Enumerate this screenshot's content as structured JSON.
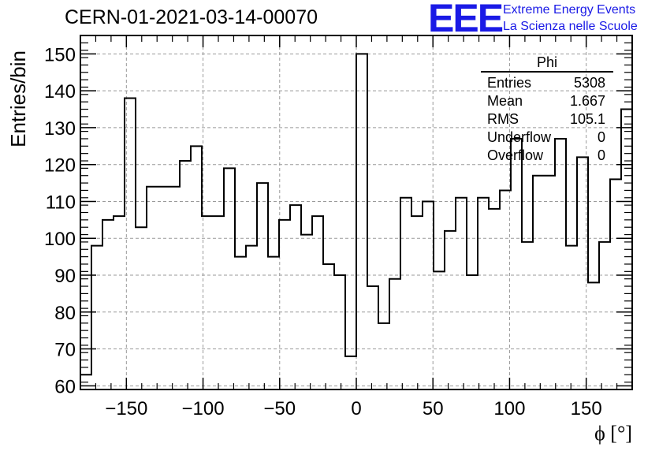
{
  "header": {
    "run_title": "CERN-01-2021-03-14-00070",
    "logo_text": "EEE",
    "org_line1": "Extreme Energy Events",
    "org_line2": "La Scienza nelle Scuole"
  },
  "stats": {
    "name": "Phi",
    "rows": [
      {
        "label": "Entries",
        "value": "5308"
      },
      {
        "label": "Mean",
        "value": "1.667"
      },
      {
        "label": "RMS",
        "value": "105.1"
      },
      {
        "label": "Underflow",
        "value": "0"
      },
      {
        "label": "Overflow",
        "value": "0"
      }
    ]
  },
  "colors": {
    "line": "#000000",
    "grid": "#999999",
    "logo": "#1a1ae6"
  },
  "chart_data": {
    "type": "histogram",
    "xlabel": "ϕ [°]",
    "ylabel": "Entries/bin",
    "xlim": [
      -180,
      180
    ],
    "ylim": [
      59,
      155
    ],
    "grid": true,
    "legend_position": "top-right",
    "x_ticks": [
      -150,
      -100,
      -50,
      0,
      50,
      100,
      150
    ],
    "y_ticks": [
      60,
      70,
      80,
      90,
      100,
      110,
      120,
      130,
      140,
      150
    ],
    "bin_edges_start": -180,
    "bin_width": 7.2,
    "values": [
      63,
      98,
      105,
      106,
      138,
      103,
      114,
      114,
      114,
      121,
      125,
      106,
      106,
      119,
      95,
      98,
      115,
      95,
      105,
      109,
      101,
      106,
      93,
      90,
      68,
      150,
      87,
      77,
      89,
      111,
      106,
      110,
      91,
      102,
      111,
      90,
      111,
      108,
      113,
      127,
      99,
      117,
      117,
      127,
      98,
      122,
      88,
      99,
      116,
      135
    ]
  }
}
